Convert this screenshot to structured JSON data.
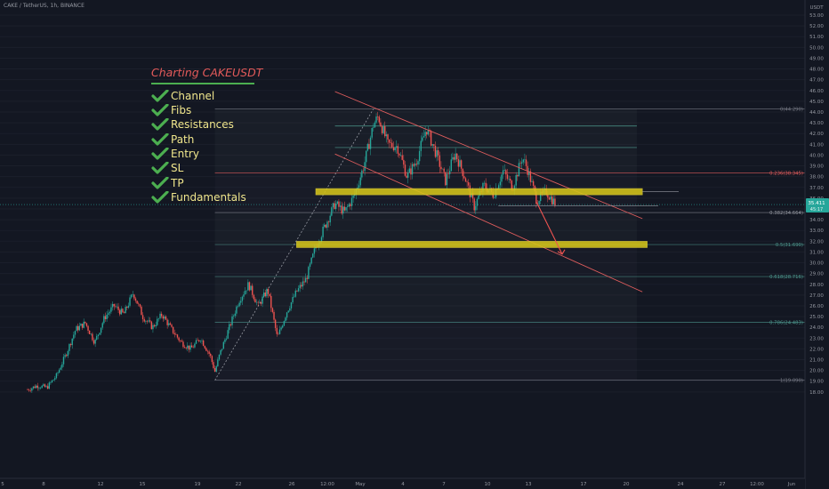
{
  "symbol_text": "CAKE / TetherUS, 1h, BINANCE",
  "checklist": {
    "title": "Charting CAKEUSDT",
    "items": [
      "Channel",
      "Fibs",
      "Resistances",
      "Path",
      "Entry",
      "SL",
      "TP",
      "Fundamentals"
    ]
  },
  "colors": {
    "background": "#131722",
    "up": "#26a69a",
    "down": "#ef5350",
    "zone": "#d4c41a",
    "channel": "#e05d5d",
    "check": "#4caf50",
    "label": "#f0e68c",
    "fib": "#4e9a8f"
  },
  "chart_data": {
    "type": "candlestick",
    "y_axis": {
      "unit": "USDT",
      "range": [
        18.0,
        54.0
      ],
      "ticks": [
        "18.00",
        "19.00",
        "20.00",
        "21.00",
        "22.00",
        "23.00",
        "24.00",
        "25.00",
        "26.00",
        "27.00",
        "28.00",
        "29.00",
        "30.00",
        "31.00",
        "32.00",
        "33.00",
        "34.00",
        "35.00",
        "36.00",
        "37.00",
        "38.00",
        "39.00",
        "40.00",
        "41.00",
        "42.00",
        "43.00",
        "44.00",
        "45.00",
        "46.00",
        "47.00",
        "48.00",
        "49.00",
        "50.00",
        "51.00",
        "52.00",
        "53.00"
      ],
      "current_price_label": "35.411",
      "current_price_sub": "45:17",
      "current_price": 35.41
    },
    "x_axis": {
      "ticks": [
        "5",
        "8",
        "12",
        "15",
        "19",
        "22",
        "26",
        "12:00",
        "May",
        "4",
        "7",
        "10",
        "13",
        "17",
        "20",
        "24",
        "27",
        "12:00",
        "Jun"
      ]
    },
    "series_path": [
      {
        "t": 0,
        "p": 18.2
      },
      {
        "t": 2,
        "p": 18.6
      },
      {
        "t": 4,
        "p": 18.4
      },
      {
        "t": 6,
        "p": 19.5
      },
      {
        "t": 8,
        "p": 21.5
      },
      {
        "t": 10,
        "p": 23.8
      },
      {
        "t": 12,
        "p": 24.4
      },
      {
        "t": 14,
        "p": 22.6
      },
      {
        "t": 16,
        "p": 24.9
      },
      {
        "t": 18,
        "p": 26.0
      },
      {
        "t": 20,
        "p": 25.2
      },
      {
        "t": 22,
        "p": 27.2
      },
      {
        "t": 24,
        "p": 25.0
      },
      {
        "t": 26,
        "p": 24.0
      },
      {
        "t": 28,
        "p": 25.2
      },
      {
        "t": 30,
        "p": 23.8
      },
      {
        "t": 32,
        "p": 22.6
      },
      {
        "t": 34,
        "p": 22.0
      },
      {
        "t": 36,
        "p": 23.0
      },
      {
        "t": 38,
        "p": 21.4
      },
      {
        "t": 39,
        "p": 19.9
      },
      {
        "t": 40,
        "p": 21.5
      },
      {
        "t": 42,
        "p": 24.0
      },
      {
        "t": 44,
        "p": 26.5
      },
      {
        "t": 46,
        "p": 28.0
      },
      {
        "t": 48,
        "p": 26.0
      },
      {
        "t": 50,
        "p": 27.5
      },
      {
        "t": 52,
        "p": 23.0
      },
      {
        "t": 54,
        "p": 25.5
      },
      {
        "t": 56,
        "p": 27.3
      },
      {
        "t": 58,
        "p": 28.5
      },
      {
        "t": 60,
        "p": 31.5
      },
      {
        "t": 62,
        "p": 33.5
      },
      {
        "t": 64,
        "p": 35.5
      },
      {
        "t": 66,
        "p": 34.7
      },
      {
        "t": 68,
        "p": 36.2
      },
      {
        "t": 70,
        "p": 39.0
      },
      {
        "t": 72,
        "p": 42.8
      },
      {
        "t": 73,
        "p": 43.6
      },
      {
        "t": 75,
        "p": 41.0
      },
      {
        "t": 77,
        "p": 40.8
      },
      {
        "t": 79,
        "p": 38.0
      },
      {
        "t": 81,
        "p": 39.5
      },
      {
        "t": 83,
        "p": 42.5
      },
      {
        "t": 85,
        "p": 40.2
      },
      {
        "t": 87,
        "p": 37.6
      },
      {
        "t": 89,
        "p": 40.2
      },
      {
        "t": 91,
        "p": 38.0
      },
      {
        "t": 93,
        "p": 35.2
      },
      {
        "t": 95,
        "p": 37.2
      },
      {
        "t": 97,
        "p": 36.3
      },
      {
        "t": 99,
        "p": 38.5
      },
      {
        "t": 101,
        "p": 37.0
      },
      {
        "t": 103,
        "p": 39.8
      },
      {
        "t": 104,
        "p": 38.8
      },
      {
        "t": 106,
        "p": 35.8
      },
      {
        "t": 108,
        "p": 36.6
      },
      {
        "t": 110,
        "p": 35.4
      }
    ],
    "fib_levels": [
      {
        "label": "0(44.290)",
        "value": 44.29
      },
      {
        "label": "0.236(38.345)",
        "value": 38.345
      },
      {
        "label": "0.382(34.664)",
        "value": 34.664
      },
      {
        "label": "0.5(31.690)",
        "value": 31.69
      },
      {
        "label": "0.618(28.716)",
        "value": 28.716
      },
      {
        "label": "0.786(24.483)",
        "value": 24.483
      },
      {
        "label": "1(19.090)",
        "value": 19.09
      }
    ],
    "resistance_lines": [
      42.7,
      40.7
    ],
    "zones": [
      {
        "price": 36.6,
        "from_t": 60,
        "to_t": 128
      },
      {
        "price": 31.7,
        "from_t": 56,
        "to_t": 129
      }
    ],
    "channel": {
      "upper": [
        {
          "t": 64,
          "p": 45.9
        },
        {
          "t": 128,
          "p": 34.1
        }
      ],
      "lower": [
        {
          "t": 64,
          "p": 40.1
        },
        {
          "t": 128,
          "p": 27.3
        }
      ]
    },
    "fib_diagonal": [
      {
        "t": 39,
        "p": 19.09
      },
      {
        "t": 72,
        "p": 44.29
      }
    ],
    "path_projection": [
      {
        "t": 106,
        "p": 35.6
      },
      {
        "t": 110,
        "p": 30.8
      }
    ]
  }
}
